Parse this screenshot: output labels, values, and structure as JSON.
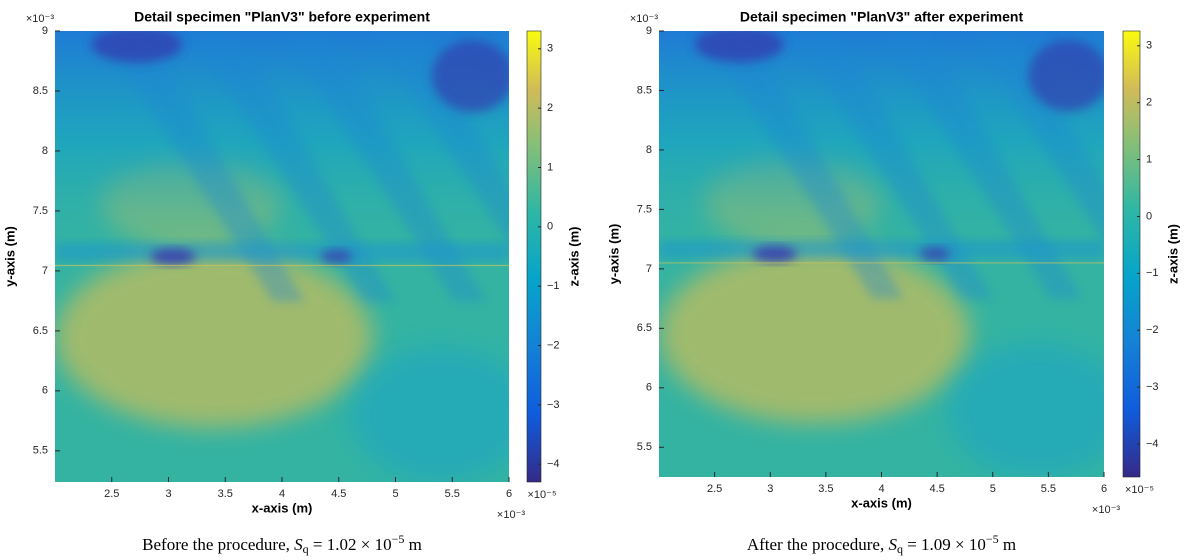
{
  "chart_data": [
    {
      "type": "heatmap",
      "title": "Detail specimen \"PlanV3\" before experiment",
      "x_label": "x-axis (m)",
      "y_label": "y-axis (m)",
      "colorbar_label": "z-axis (m)",
      "x_exponent": "×10⁻³",
      "y_exponent": "×10⁻³",
      "colorbar_exponent": "×10⁻⁵",
      "xlim": [
        2.0,
        6.0
      ],
      "xticks": [
        2.5,
        3,
        3.5,
        4,
        4.5,
        5,
        5.5,
        6
      ],
      "ylim": [
        5.24,
        9
      ],
      "yticks": [
        5.5,
        6,
        6.5,
        7,
        7.5,
        8,
        8.5,
        9
      ],
      "clim": [
        -4.3,
        3.3
      ],
      "cticks": [
        {
          "value": -4,
          "label": "−4"
        },
        {
          "value": -3,
          "label": "−3"
        },
        {
          "value": -2,
          "label": "−2"
        },
        {
          "value": -1,
          "label": "−1"
        },
        0,
        1,
        2,
        3
      ],
      "colormap": "parula",
      "caption": {
        "text": "Before the procedure, ",
        "symbol": "S",
        "subscript": "q",
        "equals": " = 1.02 × 10",
        "exponent": "−5",
        "unit": " m"
      }
    },
    {
      "type": "heatmap",
      "title": "Detail specimen \"PlanV3\" after experiment",
      "x_label": "x-axis (m)",
      "y_label": "y-axis (m)",
      "colorbar_label": "z-axis (m)",
      "x_exponent": "×10⁻³",
      "y_exponent": "×10⁻³",
      "colorbar_exponent": "×10⁻⁵",
      "xlim": [
        2.0,
        6.0
      ],
      "xticks": [
        2.5,
        3,
        3.5,
        4,
        4.5,
        5,
        5.5,
        6
      ],
      "ylim": [
        5.25,
        9
      ],
      "yticks": [
        5.5,
        6,
        6.5,
        7,
        7.5,
        8,
        8.5,
        9
      ],
      "clim": [
        -4.58,
        3.26
      ],
      "cticks": [
        {
          "value": -4,
          "label": "−4"
        },
        {
          "value": -3,
          "label": "−3"
        },
        {
          "value": -2,
          "label": "−2"
        },
        {
          "value": -1,
          "label": "−1"
        },
        0,
        1,
        2,
        3
      ],
      "colormap": "parula",
      "caption": {
        "text": "After the procedure, ",
        "symbol": "S",
        "subscript": "q",
        "equals": " = 1.09 × 10",
        "exponent": "−5",
        "unit": " m"
      }
    }
  ]
}
